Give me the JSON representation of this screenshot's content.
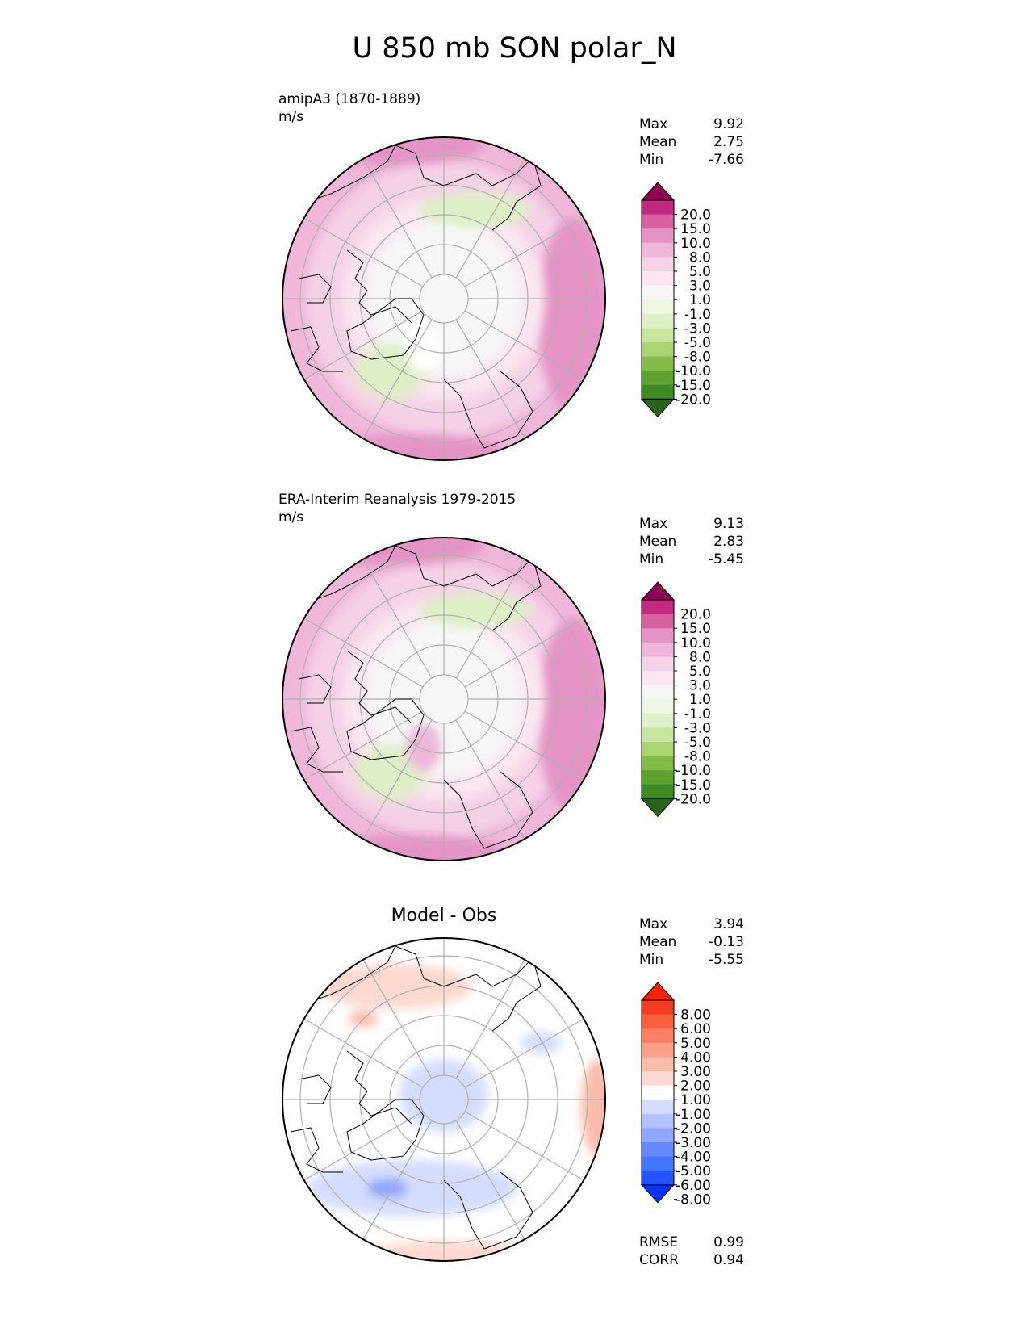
{
  "title": "U 850 mb SON polar_N",
  "colors": {
    "diverging_pink_green": [
      "#276419",
      "#3e8a22",
      "#5ea131",
      "#83bc48",
      "#a9d573",
      "#c8e6a2",
      "#dff0c8",
      "#eef7e4",
      "#f7f7f7",
      "#fbe6f1",
      "#f6d2e7",
      "#f0b7da",
      "#e594c6",
      "#d7629f",
      "#c22981",
      "#8e0152"
    ],
    "diverging_blue_red": [
      "#0033ff",
      "#2255ff",
      "#4477ff",
      "#6688ff",
      "#8ea6ff",
      "#b3c2ff",
      "#d5ddff",
      "#ffffff",
      "#fdd9d0",
      "#fcbcaa",
      "#fc9f87",
      "#fb7f62",
      "#f95e3f",
      "#f43c22",
      "#ff2200"
    ],
    "land_outline": "#000000",
    "grid": "#b0b0b0"
  },
  "chart_data": [
    {
      "type": "heatmap",
      "projection": "north-polar-stereographic",
      "subtitle": "amipA3 (1870-1889)",
      "units": "m/s",
      "stats": {
        "max_label": "Max",
        "max": "9.92",
        "mean_label": "Mean",
        "mean": "2.75",
        "min_label": "Min",
        "min": "-7.66"
      },
      "colorbar_levels": [
        "20.0",
        "15.0",
        "10.0",
        "8.0",
        "5.0",
        "3.0",
        "1.0",
        "-1.0",
        "-3.0",
        "-5.0",
        "-8.0",
        "-10.0",
        "-15.0",
        "-20.0"
      ],
      "colormap": "diverging_pink_green"
    },
    {
      "type": "heatmap",
      "projection": "north-polar-stereographic",
      "subtitle": "ERA-Interim Reanalysis 1979-2015",
      "units": "m/s",
      "stats": {
        "max_label": "Max",
        "max": "9.13",
        "mean_label": "Mean",
        "mean": "2.83",
        "min_label": "Min",
        "min": "-5.45"
      },
      "colorbar_levels": [
        "20.0",
        "15.0",
        "10.0",
        "8.0",
        "5.0",
        "3.0",
        "1.0",
        "-1.0",
        "-3.0",
        "-5.0",
        "-8.0",
        "-10.0",
        "-15.0",
        "-20.0"
      ],
      "colormap": "diverging_pink_green"
    },
    {
      "type": "heatmap",
      "projection": "north-polar-stereographic",
      "title": "Model - Obs",
      "stats": {
        "max_label": "Max",
        "max": "3.94",
        "mean_label": "Mean",
        "mean": "-0.13",
        "min_label": "Min",
        "min": "-5.55"
      },
      "colorbar_levels": [
        "8.00",
        "6.00",
        "5.00",
        "4.00",
        "3.00",
        "2.00",
        "1.00",
        "-1.00",
        "-2.00",
        "-3.00",
        "-4.00",
        "-5.00",
        "-6.00",
        "-8.00"
      ],
      "colormap": "diverging_blue_red",
      "metrics": {
        "rmse_label": "RMSE",
        "rmse": "0.99",
        "corr_label": "CORR",
        "corr": "0.94"
      }
    }
  ]
}
